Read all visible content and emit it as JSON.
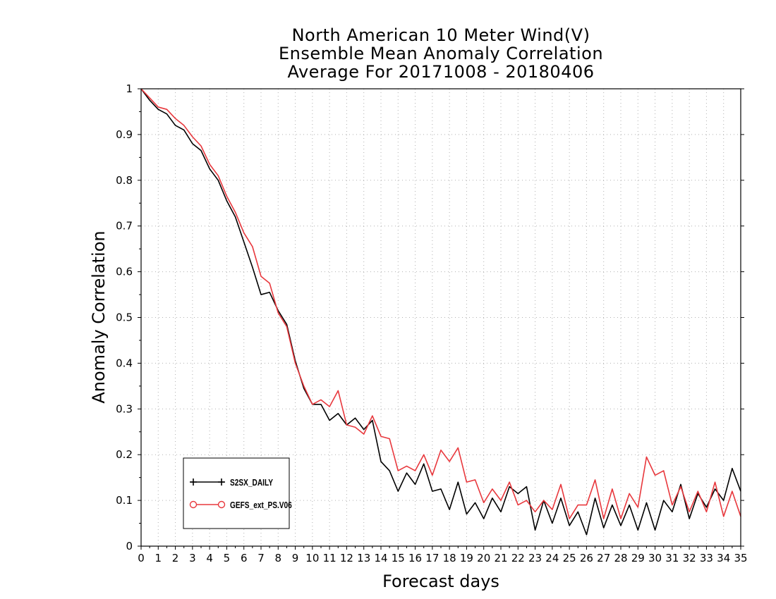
{
  "chart_data": {
    "type": "line",
    "title": [
      "North American 10 Meter Wind(V)",
      "Ensemble Mean Anomaly Correlation",
      "Average For 20171008 - 20180406"
    ],
    "xlabel": "Forecast days",
    "ylabel": "Anomaly Correlation",
    "xlim": [
      0,
      35
    ],
    "ylim": [
      0,
      1
    ],
    "xticks": [
      "0",
      "1",
      "2",
      "3",
      "4",
      "5",
      "6",
      "7",
      "8",
      "9",
      "10",
      "11",
      "12",
      "13",
      "14",
      "15",
      "16",
      "17",
      "18",
      "19",
      "20",
      "21",
      "22",
      "23",
      "24",
      "25",
      "26",
      "27",
      "28",
      "29",
      "30",
      "31",
      "32",
      "33",
      "34",
      "35"
    ],
    "yticks": [
      "0",
      "0.1",
      "0.2",
      "0.3",
      "0.4",
      "0.5",
      "0.6",
      "0.7",
      "0.8",
      "0.9",
      "1"
    ],
    "grid": true,
    "legend_position": "bottom-left",
    "x_step": 0.5,
    "series": [
      {
        "name": "S2SX_DAILY",
        "color": "#000000",
        "marker": "plus",
        "values": [
          1.0,
          0.975,
          0.955,
          0.945,
          0.92,
          0.91,
          0.88,
          0.865,
          0.825,
          0.8,
          0.755,
          0.72,
          0.665,
          0.61,
          0.55,
          0.555,
          0.515,
          0.485,
          0.405,
          0.345,
          0.31,
          0.31,
          0.275,
          0.29,
          0.265,
          0.28,
          0.255,
          0.275,
          0.185,
          0.165,
          0.12,
          0.16,
          0.135,
          0.18,
          0.12,
          0.125,
          0.08,
          0.14,
          0.07,
          0.095,
          0.06,
          0.105,
          0.075,
          0.13,
          0.115,
          0.13,
          0.035,
          0.1,
          0.05,
          0.105,
          0.045,
          0.075,
          0.025,
          0.105,
          0.04,
          0.09,
          0.045,
          0.09,
          0.035,
          0.095,
          0.035,
          0.1,
          0.075,
          0.135,
          0.06,
          0.115,
          0.085,
          0.125,
          0.1,
          0.17,
          0.12
        ]
      },
      {
        "name": "GEFS_ext_PS.V06",
        "color": "#e8383d",
        "marker": "circle",
        "values": [
          1.0,
          0.98,
          0.96,
          0.955,
          0.935,
          0.92,
          0.895,
          0.875,
          0.835,
          0.81,
          0.765,
          0.73,
          0.685,
          0.655,
          0.59,
          0.575,
          0.51,
          0.48,
          0.4,
          0.35,
          0.31,
          0.32,
          0.305,
          0.34,
          0.265,
          0.26,
          0.245,
          0.285,
          0.24,
          0.235,
          0.165,
          0.175,
          0.165,
          0.2,
          0.155,
          0.21,
          0.185,
          0.215,
          0.14,
          0.145,
          0.095,
          0.125,
          0.1,
          0.14,
          0.09,
          0.1,
          0.075,
          0.1,
          0.08,
          0.135,
          0.06,
          0.09,
          0.09,
          0.145,
          0.06,
          0.125,
          0.06,
          0.115,
          0.085,
          0.195,
          0.155,
          0.165,
          0.09,
          0.13,
          0.075,
          0.12,
          0.075,
          0.14,
          0.065,
          0.12,
          0.065
        ]
      }
    ]
  }
}
